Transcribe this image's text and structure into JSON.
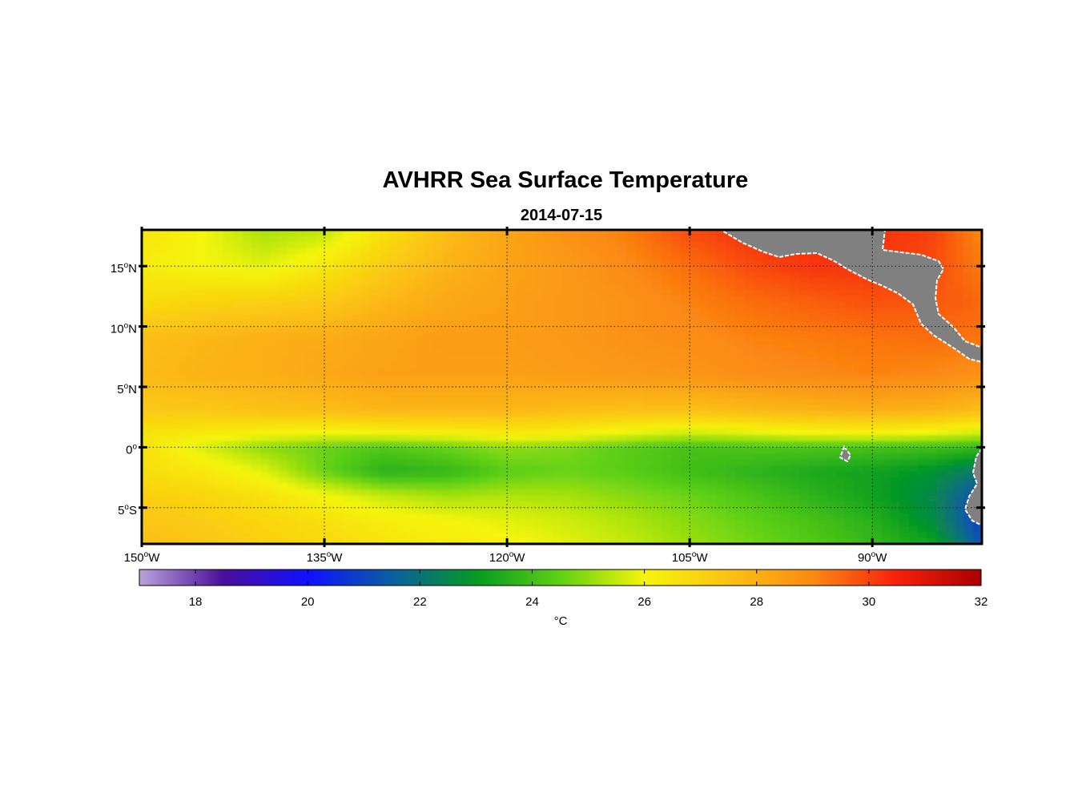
{
  "chart_data": {
    "type": "heatmap",
    "title": "AVHRR Sea Surface Temperature",
    "subtitle": "2014-07-15",
    "x_axis": {
      "range": [
        -150,
        -81
      ],
      "ticks": [
        {
          "value": -150,
          "num": "150",
          "deg": "o",
          "hemi": "W"
        },
        {
          "value": -135,
          "num": "135",
          "deg": "o",
          "hemi": "W"
        },
        {
          "value": -120,
          "num": "120",
          "deg": "o",
          "hemi": "W"
        },
        {
          "value": -105,
          "num": "105",
          "deg": "o",
          "hemi": "W"
        },
        {
          "value": -90,
          "num": "90",
          "deg": "o",
          "hemi": "W"
        }
      ]
    },
    "y_axis": {
      "range": [
        -8,
        18
      ],
      "ticks": [
        {
          "value": 15,
          "num": "15",
          "deg": "o",
          "hemi": "N"
        },
        {
          "value": 10,
          "num": "10",
          "deg": "o",
          "hemi": "N"
        },
        {
          "value": 5,
          "num": "5",
          "deg": "o",
          "hemi": "N"
        },
        {
          "value": 0,
          "num": "0",
          "deg": "o",
          "hemi": ""
        },
        {
          "value": -5,
          "num": "5",
          "deg": "o",
          "hemi": "S"
        }
      ]
    },
    "grid": true,
    "colorbar": {
      "range": [
        17,
        32
      ],
      "ticks": [
        18,
        20,
        22,
        24,
        26,
        28,
        30,
        32
      ],
      "label": "°C",
      "colors": [
        {
          "t": 17,
          "color": "#b9a3da"
        },
        {
          "t": 18.5,
          "color": "#4b0e9a"
        },
        {
          "t": 20,
          "color": "#1010ff"
        },
        {
          "t": 21.5,
          "color": "#0a5fa0"
        },
        {
          "t": 23,
          "color": "#059a22"
        },
        {
          "t": 24.5,
          "color": "#5fd014"
        },
        {
          "t": 26,
          "color": "#f5f50a"
        },
        {
          "t": 27.5,
          "color": "#fbc214"
        },
        {
          "t": 29,
          "color": "#fb8a12"
        },
        {
          "t": 30.5,
          "color": "#f7200a"
        },
        {
          "t": 32,
          "color": "#a80000"
        }
      ]
    },
    "sst_field": {
      "lon": [
        -150,
        -145,
        -140,
        -135,
        -130,
        -125,
        -120,
        -115,
        -110,
        -105,
        -100,
        -95,
        -90,
        -85,
        -81
      ],
      "lat": [
        18,
        15,
        12,
        9,
        6,
        3,
        1,
        0,
        -2,
        -4,
        -6,
        -8
      ],
      "values": [
        [
          26.5,
          26.0,
          25.2,
          25.4,
          26.6,
          27.6,
          28.3,
          28.8,
          29.2,
          29.9,
          30.3,
          30.4,
          30.3,
          30.0,
          29.0
        ],
        [
          26.3,
          26.0,
          25.8,
          26.4,
          27.2,
          27.9,
          28.3,
          28.6,
          29.0,
          29.4,
          29.9,
          30.2,
          30.2,
          29.9,
          29.2
        ],
        [
          26.7,
          27.0,
          27.1,
          27.3,
          27.8,
          28.2,
          28.4,
          28.6,
          28.8,
          29.1,
          29.4,
          29.6,
          29.8,
          29.7,
          29.5
        ],
        [
          27.6,
          27.8,
          28.0,
          28.1,
          28.3,
          28.5,
          28.5,
          28.6,
          28.8,
          28.9,
          29.1,
          29.2,
          29.3,
          29.4,
          29.3
        ],
        [
          27.7,
          27.9,
          28.0,
          28.2,
          28.4,
          28.4,
          28.4,
          28.5,
          28.6,
          28.7,
          28.9,
          29.0,
          29.1,
          29.0,
          28.8
        ],
        [
          27.3,
          27.3,
          27.5,
          27.6,
          27.8,
          27.8,
          27.8,
          27.6,
          27.5,
          27.5,
          27.7,
          27.9,
          28.0,
          27.9,
          27.6
        ],
        [
          26.5,
          26.3,
          26.0,
          25.8,
          25.9,
          26.0,
          26.2,
          26.1,
          25.7,
          25.4,
          25.6,
          25.8,
          25.9,
          25.7,
          25.4
        ],
        [
          26.6,
          25.7,
          25.0,
          24.6,
          24.3,
          24.6,
          25.0,
          24.8,
          24.4,
          24.1,
          24.2,
          24.2,
          24.1,
          24.0,
          23.8
        ],
        [
          26.7,
          26.4,
          25.8,
          24.6,
          23.6,
          23.8,
          24.4,
          24.6,
          24.4,
          24.0,
          23.7,
          23.4,
          23.2,
          22.8,
          22.0
        ],
        [
          27.1,
          26.9,
          26.6,
          26.0,
          25.5,
          25.2,
          25.3,
          25.2,
          24.9,
          24.6,
          24.2,
          23.7,
          23.2,
          22.5,
          21.0
        ],
        [
          27.4,
          27.2,
          26.9,
          26.6,
          26.2,
          26.0,
          25.8,
          25.6,
          25.3,
          24.9,
          24.5,
          24.1,
          23.6,
          22.6,
          20.8
        ],
        [
          27.6,
          27.4,
          27.1,
          26.8,
          26.5,
          26.3,
          26.1,
          25.8,
          25.5,
          25.1,
          24.7,
          24.3,
          23.8,
          23.2,
          21.2
        ]
      ]
    },
    "land_color": "#808080"
  }
}
